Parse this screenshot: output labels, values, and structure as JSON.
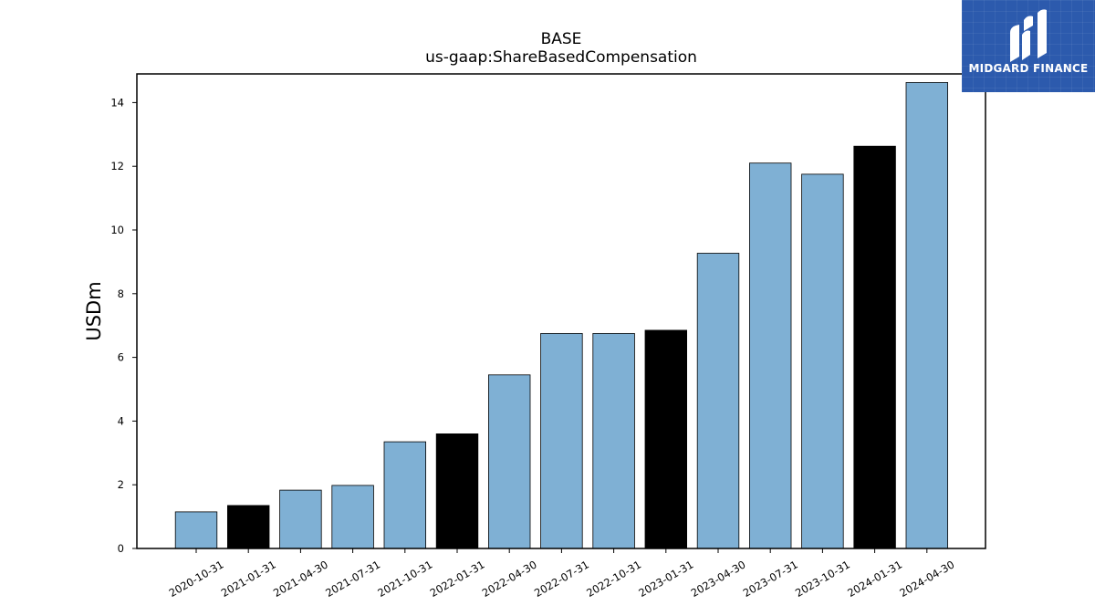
{
  "chart_data": {
    "type": "bar",
    "title": "BASE",
    "subtitle": "us-gaap:ShareBasedCompensation",
    "xlabel": "",
    "ylabel": "USDm",
    "ylim": [
      0,
      14.9
    ],
    "yticks": [
      0,
      2,
      4,
      6,
      8,
      10,
      12,
      14
    ],
    "grid": false,
    "categories": [
      "2020-10-31",
      "2021-01-31",
      "2021-04-30",
      "2021-07-31",
      "2021-10-31",
      "2022-01-31",
      "2022-04-30",
      "2022-07-31",
      "2022-10-31",
      "2023-01-31",
      "2023-04-30",
      "2023-07-31",
      "2023-10-31",
      "2024-01-31",
      "2024-04-30"
    ],
    "values": [
      1.15,
      1.35,
      1.83,
      1.98,
      3.35,
      3.6,
      5.45,
      6.75,
      6.75,
      6.85,
      9.27,
      12.1,
      11.75,
      12.63,
      14.63
    ],
    "highlighted": [
      false,
      true,
      false,
      false,
      false,
      true,
      false,
      false,
      false,
      true,
      false,
      false,
      false,
      true,
      false
    ],
    "colors": {
      "bar": "#7fb0d4",
      "highlight": "#000000",
      "edge": "#000000"
    }
  },
  "logo": {
    "text": "MIDGARD FINANCE",
    "background": "#2c5aad"
  }
}
